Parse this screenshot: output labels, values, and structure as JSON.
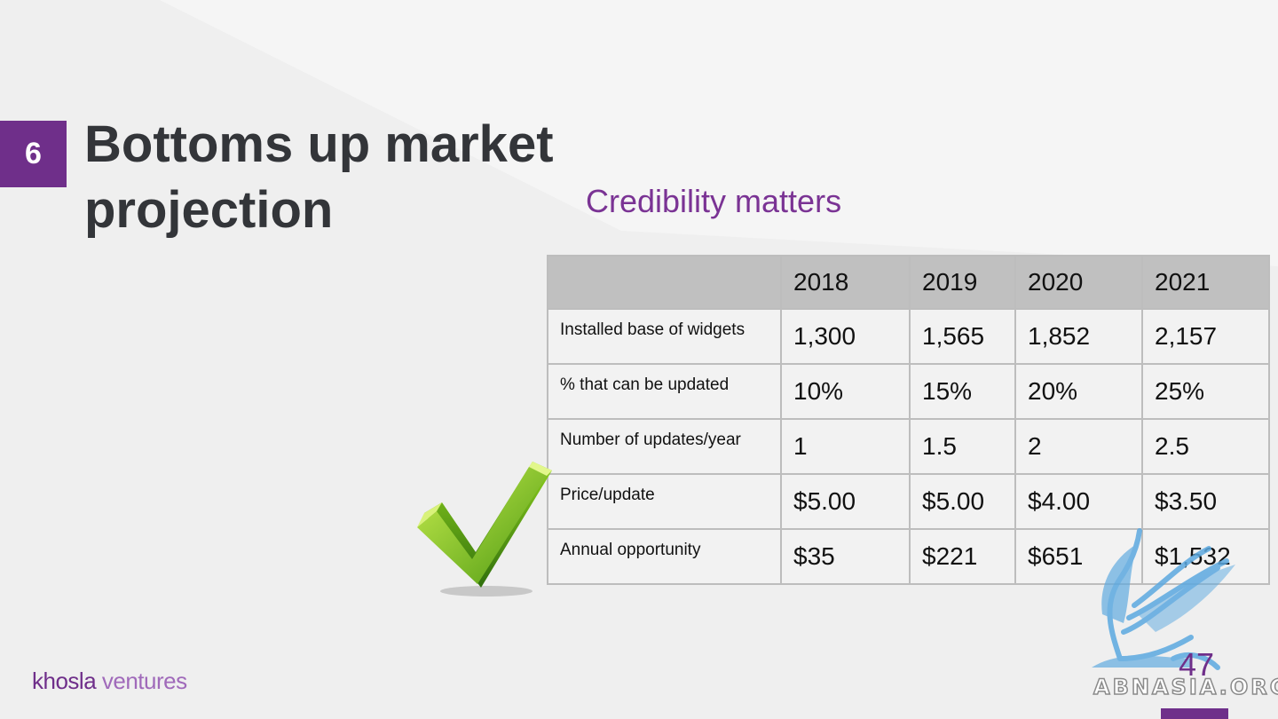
{
  "slide": {
    "number": "6",
    "title": "Bottoms up market projection",
    "subtitle": "Credibility matters",
    "page_number": "47",
    "brand": {
      "part1": "khosla",
      "part2": "ventures"
    },
    "watermark": "ABNASIA.ORG"
  },
  "colors": {
    "accent": "#6f2f8a",
    "subtitle": "#7a3394",
    "header_bg": "#c0c0c0",
    "title": "#333539"
  },
  "table": {
    "columns": [
      "",
      "2018",
      "2019",
      "2020",
      "2021"
    ],
    "rows": [
      {
        "label": "Installed base of widgets",
        "values": [
          "1,300",
          "1,565",
          "1,852",
          "2,157"
        ]
      },
      {
        "label": "% that can be updated",
        "values": [
          "10%",
          "15%",
          "20%",
          "25%"
        ]
      },
      {
        "label": "Number of updates/year",
        "values": [
          "1",
          "1.5",
          "2",
          "2.5"
        ]
      },
      {
        "label": "Price/update",
        "values": [
          "$5.00",
          "$5.00",
          "$4.00",
          "$3.50"
        ]
      },
      {
        "label": "Annual opportunity",
        "values": [
          "$35",
          "$221",
          "$651",
          "$1,532"
        ]
      }
    ]
  },
  "icons": {
    "checkmark": "green-check-icon",
    "watermark": "griffin-logo-icon"
  }
}
